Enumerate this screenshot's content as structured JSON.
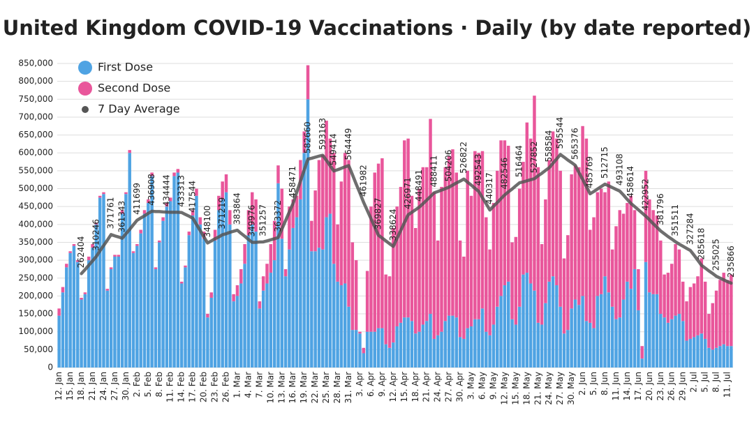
{
  "chart_data": {
    "type": "bar",
    "stacked": true,
    "title": "United Kingdom COVID-19 Vaccinations · Daily (by date reported)",
    "categories": [
      "12. Jan",
      null,
      null,
      "15. Jan",
      null,
      null,
      "18. Jan",
      null,
      null,
      "21. Jan",
      null,
      null,
      "24. Jan",
      null,
      null,
      "27. Jan",
      null,
      null,
      "30. Jan",
      null,
      null,
      "2. Feb",
      null,
      null,
      "5. Feb",
      null,
      null,
      "8. Feb",
      null,
      null,
      "11. Feb",
      null,
      null,
      "14. Feb",
      null,
      null,
      "17. Feb",
      null,
      null,
      "20. Feb",
      null,
      null,
      "23. Feb",
      null,
      null,
      "26. Feb",
      null,
      null,
      "1. Mar",
      null,
      null,
      "4. Mar",
      null,
      null,
      "7. Mar",
      null,
      null,
      "10. Mar",
      null,
      null,
      "13. Mar",
      null,
      null,
      "16. Mar",
      null,
      null,
      "19. Mar",
      null,
      null,
      "22. Mar",
      null,
      null,
      "25. Mar",
      null,
      null,
      "28. Mar",
      null,
      null,
      "31. Mar",
      null,
      null,
      "3. Apr",
      null,
      null,
      "6. Apr",
      null,
      null,
      "9. Apr",
      null,
      null,
      "12. Apr",
      null,
      null,
      "15. Apr",
      null,
      null,
      "18. Apr",
      null,
      null,
      "21. Apr",
      null,
      null,
      "24. Apr",
      null,
      null,
      "27. Apr",
      null,
      null,
      "30. Apr",
      null,
      null,
      "3. May",
      null,
      null,
      "6. May",
      null,
      null,
      "9. May",
      null,
      null,
      "12. May",
      null,
      null,
      "15. May",
      null,
      null,
      "18. May",
      null,
      null,
      "21. May",
      null,
      null,
      "24. May",
      null,
      null,
      "27. May",
      null,
      null,
      "30. May",
      null,
      null,
      "2. Jun",
      null,
      null,
      "5. Jun",
      null,
      null,
      "8. Jun",
      null,
      null,
      "11. Jun",
      null,
      null,
      "14. Jun",
      null,
      null,
      "17. Jun",
      null,
      null,
      "20. Jun",
      null,
      null,
      "23. Jun",
      null,
      null,
      "26. Jun",
      null,
      null,
      "29. Jun",
      null,
      null,
      "2. Jul",
      null,
      null,
      "5. Jul",
      null,
      null,
      "8. Jul",
      null,
      null,
      "11. Jul",
      null
    ],
    "series": [
      {
        "name": "First Dose",
        "color": "#4fa3e3",
        "values": [
          145000,
          210000,
          280000,
          320000,
          340000,
          295000,
          190000,
          205000,
          300000,
          335000,
          400000,
          475000,
          485000,
          215000,
          275000,
          310000,
          310000,
          430000,
          485000,
          600000,
          320000,
          340000,
          375000,
          430000,
          460000,
          535000,
          275000,
          350000,
          410000,
          450000,
          465000,
          535000,
          545000,
          235000,
          280000,
          370000,
          425000,
          480000,
          400000,
          360000,
          140000,
          195000,
          355000,
          440000,
          470000,
          490000,
          400000,
          185000,
          200000,
          235000,
          290000,
          370000,
          400000,
          380000,
          165000,
          215000,
          235000,
          265000,
          300000,
          515000,
          360000,
          255000,
          330000,
          390000,
          420000,
          470000,
          600000,
          750000,
          325000,
          325000,
          335000,
          330000,
          420000,
          430000,
          290000,
          240000,
          230000,
          235000,
          170000,
          105000,
          105000,
          95000,
          40000,
          100000,
          100000,
          100000,
          110000,
          110000,
          65000,
          55000,
          70000,
          115000,
          125000,
          140000,
          140000,
          130000,
          95000,
          100000,
          120000,
          130000,
          150000,
          80000,
          90000,
          100000,
          130000,
          145000,
          145000,
          140000,
          85000,
          80000,
          110000,
          115000,
          135000,
          135000,
          165000,
          100000,
          90000,
          120000,
          170000,
          200000,
          230000,
          240000,
          135000,
          120000,
          170000,
          260000,
          265000,
          235000,
          215000,
          125000,
          120000,
          180000,
          240000,
          255000,
          230000,
          170000,
          95000,
          105000,
          165000,
          190000,
          175000,
          200000,
          130000,
          125000,
          110000,
          200000,
          205000,
          255000,
          210000,
          170000,
          135000,
          140000,
          190000,
          240000,
          220000,
          275000,
          160000,
          25000,
          295000,
          210000,
          205000,
          205000,
          150000,
          140000,
          125000,
          135000,
          145000,
          150000,
          130000,
          75000,
          80000,
          85000,
          90000,
          95000,
          80000,
          55000,
          50000,
          55000,
          60000,
          65000,
          60000,
          60000
        ]
      },
      {
        "name": "Second Dose",
        "color": "#e9569b",
        "values": [
          20000,
          15000,
          10000,
          5000,
          5000,
          5000,
          5000,
          5000,
          10000,
          10000,
          5000,
          5000,
          5000,
          5000,
          5000,
          5000,
          5000,
          10000,
          5000,
          8000,
          5000,
          5000,
          10000,
          10000,
          10000,
          10000,
          5000,
          5000,
          10000,
          10000,
          10000,
          10000,
          10000,
          5000,
          5000,
          10000,
          15000,
          20000,
          20000,
          20000,
          10000,
          15000,
          30000,
          40000,
          50000,
          50000,
          40000,
          20000,
          30000,
          40000,
          55000,
          70000,
          90000,
          90000,
          20000,
          40000,
          55000,
          80000,
          110000,
          50000,
          140000,
          20000,
          120000,
          80000,
          60000,
          110000,
          60000,
          95000,
          85000,
          170000,
          245000,
          265000,
          270000,
          210000,
          310000,
          160000,
          290000,
          365000,
          410000,
          245000,
          195000,
          5000,
          15000,
          170000,
          350000,
          445000,
          460000,
          475000,
          195000,
          200000,
          320000,
          335000,
          380000,
          495000,
          500000,
          350000,
          295000,
          400000,
          440000,
          430000,
          545000,
          410000,
          265000,
          405000,
          430000,
          445000,
          465000,
          405000,
          270000,
          230000,
          440000,
          365000,
          470000,
          465000,
          440000,
          320000,
          240000,
          340000,
          380000,
          435000,
          405000,
          380000,
          215000,
          245000,
          330000,
          315000,
          420000,
          405000,
          545000,
          435000,
          225000,
          290000,
          340000,
          405000,
          410000,
          380000,
          210000,
          265000,
          375000,
          375000,
          385000,
          475000,
          510000,
          260000,
          310000,
          290000,
          295000,
          235000,
          310000,
          160000,
          260000,
          300000,
          240000,
          220000,
          260000,
          165000,
          115000,
          35000,
          255000,
          260000,
          235000,
          220000,
          205000,
          120000,
          140000,
          155000,
          200000,
          180000,
          110000,
          110000,
          145000,
          150000,
          165000,
          210000,
          160000,
          95000,
          130000,
          160000,
          185000,
          200000,
          185000,
          200000
        ]
      },
      {
        "name": "7 Day Average",
        "type": "line",
        "color": "#555555",
        "values": [
          null,
          null,
          null,
          null,
          null,
          null,
          262404,
          274000,
          286000,
          298000,
          310246,
          326000,
          341000,
          356000,
          371761,
          368000,
          365000,
          361343,
          374000,
          386000,
          399000,
          411699,
          418000,
          424000,
          431000,
          436908,
          436000,
          436000,
          435000,
          434444,
          434000,
          434000,
          434000,
          433313,
          428000,
          423000,
          417544,
          400000,
          383000,
          365000,
          348100,
          354000,
          360000,
          365000,
          371219,
          374000,
          378000,
          381000,
          383864,
          375000,
          367000,
          358000,
          349976,
          350000,
          351000,
          351257,
          354000,
          357000,
          360000,
          363372,
          387000,
          411000,
          435000,
          458471,
          490000,
          521000,
          552000,
          582660,
          585000,
          588000,
          591000,
          593163,
          579000,
          564000,
          549414,
          553000,
          557000,
          561000,
          564449,
          539000,
          513000,
          488000,
          461982,
          439000,
          416000,
          393000,
          369827,
          362000,
          354000,
          346000,
          338624,
          361000,
          383000,
          405000,
          426971,
          434000,
          441000,
          448491,
          458000,
          468000,
          478000,
          488411,
          492000,
          496000,
          500000,
          504206,
          510000,
          516000,
          521000,
          526822,
          518000,
          510000,
          501000,
          492543,
          475000,
          458000,
          440317,
          451000,
          461000,
          472000,
          482546,
          491000,
          499000,
          508000,
          516464,
          519000,
          522000,
          525000,
          527852,
          536000,
          543000,
          551000,
          558584,
          571000,
          583000,
          595544,
          588000,
          580000,
          573000,
          565376,
          545000,
          526000,
          506000,
          485769,
          492000,
          499000,
          506000,
          512715,
          508000,
          503000,
          498000,
          493108,
          482000,
          470000,
          458614,
          450000,
          441000,
          432000,
          422952,
          413000,
          402000,
          392000,
          381796,
          374000,
          366000,
          359000,
          351511,
          345000,
          339000,
          333000,
          327284,
          314000,
          300000,
          285618,
          278000,
          270000,
          263000,
          255025,
          250000,
          245000,
          240000,
          235866
        ],
        "value_labels": [
          null,
          null,
          null,
          null,
          null,
          null,
          "262404",
          null,
          null,
          null,
          "310246",
          null,
          null,
          null,
          "371761",
          null,
          null,
          "361343",
          null,
          null,
          null,
          "411699",
          null,
          null,
          null,
          "436908",
          null,
          null,
          null,
          "434444",
          null,
          null,
          null,
          "433313",
          null,
          null,
          "417544",
          null,
          null,
          null,
          "348100",
          null,
          null,
          null,
          "371219",
          null,
          null,
          null,
          "383864",
          null,
          null,
          null,
          "349976",
          null,
          null,
          "351257",
          null,
          null,
          null,
          "363372",
          null,
          null,
          null,
          "458471",
          null,
          null,
          null,
          "582660",
          null,
          null,
          null,
          "593163",
          null,
          null,
          "549414",
          null,
          null,
          null,
          "564449",
          null,
          null,
          null,
          "461982",
          null,
          null,
          null,
          "369827",
          null,
          null,
          null,
          "338624",
          null,
          null,
          null,
          "426971",
          null,
          null,
          "448491",
          null,
          null,
          null,
          "488411",
          null,
          null,
          null,
          "504206",
          null,
          null,
          null,
          "526822",
          null,
          null,
          null,
          "492543",
          null,
          null,
          "440317",
          null,
          null,
          null,
          "482546",
          null,
          null,
          null,
          "516464",
          null,
          null,
          null,
          "527852",
          null,
          null,
          null,
          "558584",
          null,
          null,
          "595544",
          null,
          null,
          null,
          "565376",
          null,
          null,
          null,
          "485769",
          null,
          null,
          null,
          "512715",
          null,
          null,
          null,
          "493108",
          null,
          null,
          "458614",
          null,
          null,
          null,
          "422952",
          null,
          null,
          null,
          "381796",
          null,
          null,
          null,
          "351511",
          null,
          null,
          null,
          "327284",
          null,
          null,
          "285618",
          null,
          null,
          null,
          "255025",
          null,
          null,
          null,
          "235866"
        ]
      }
    ],
    "ylim": [
      0,
      850000
    ],
    "yticks": [
      0,
      {
        "value": 50000,
        "label": "50,000"
      },
      {
        "value": 100000,
        "label": "100,000"
      },
      {
        "value": 150000,
        "label": "150,000"
      },
      {
        "value": 200000,
        "label": "200,000"
      },
      {
        "value": 250000,
        "label": "250,000"
      },
      {
        "value": 300000,
        "label": "300,000"
      },
      {
        "value": 350000,
        "label": "350,000"
      },
      {
        "value": 400000,
        "label": "400,000"
      },
      {
        "value": 450000,
        "label": "450,000"
      },
      {
        "value": 500000,
        "label": "500,000"
      },
      {
        "value": 550000,
        "label": "550,000"
      },
      {
        "value": 600000,
        "label": "600,000"
      },
      {
        "value": 650000,
        "label": "650,000"
      },
      {
        "value": 700000,
        "label": "700,000"
      },
      {
        "value": 750000,
        "label": "750,000"
      },
      {
        "value": 800000,
        "label": "800,000"
      },
      {
        "value": 850000,
        "label": "850,000"
      }
    ],
    "grid": true,
    "legend": "upper left"
  }
}
